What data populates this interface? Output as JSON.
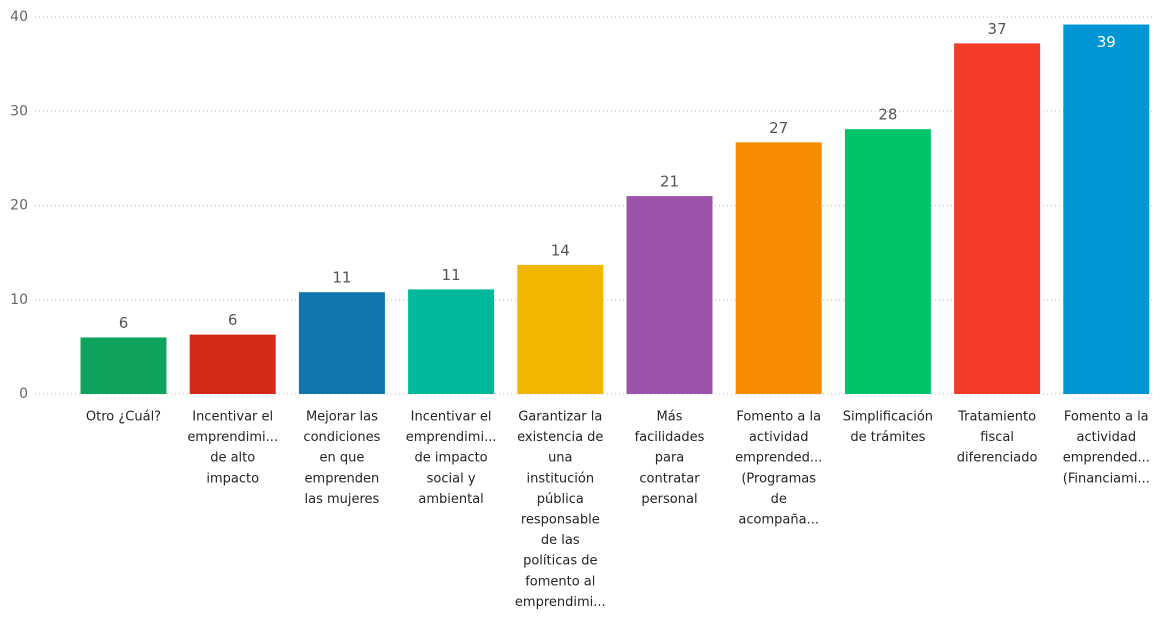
{
  "chart_data": {
    "type": "bar",
    "categories": [
      [
        "Otro ¿Cuál?"
      ],
      [
        "Incentivar el",
        "emprendimi...",
        "de alto",
        "impacto"
      ],
      [
        "Mejorar las",
        "condiciones",
        "en que",
        "emprenden",
        "las mujeres"
      ],
      [
        "Incentivar el",
        "emprendimi...",
        "de impacto",
        "social y",
        "ambiental"
      ],
      [
        "Garantizar la",
        "existencia de",
        "una",
        "institución",
        "pública",
        "responsable",
        "de las",
        "políticas de",
        "fomento al",
        "emprendimi..."
      ],
      [
        "Más",
        "facilidades",
        "para",
        "contratar",
        "personal"
      ],
      [
        "Fomento a la",
        "actividad",
        "emprended...",
        "(Programas",
        "de",
        "acompaña..."
      ],
      [
        "Simplificación",
        "de trámites"
      ],
      [
        "Tratamiento",
        "fiscal",
        "diferenciado"
      ],
      [
        "Fomento a la",
        "actividad",
        "emprended...",
        "(Financiami..."
      ]
    ],
    "values": [
      6.0,
      6.3,
      10.8,
      11.1,
      13.7,
      21.0,
      26.7,
      28.1,
      37.2,
      39.2
    ],
    "value_labels": [
      "6",
      "6",
      "11",
      "11",
      "14",
      "21",
      "27",
      "28",
      "37",
      "39"
    ],
    "colors": [
      "#0ea35c",
      "#d22c18",
      "#0f77ad",
      "#00b89a",
      "#f1b700",
      "#9b52aa",
      "#f78c00",
      "#00c46a",
      "#f33b2a",
      "#0096d6"
    ],
    "ylim": [
      0,
      40
    ],
    "yticks": [
      0,
      10,
      20,
      30,
      40
    ],
    "grid": true
  }
}
